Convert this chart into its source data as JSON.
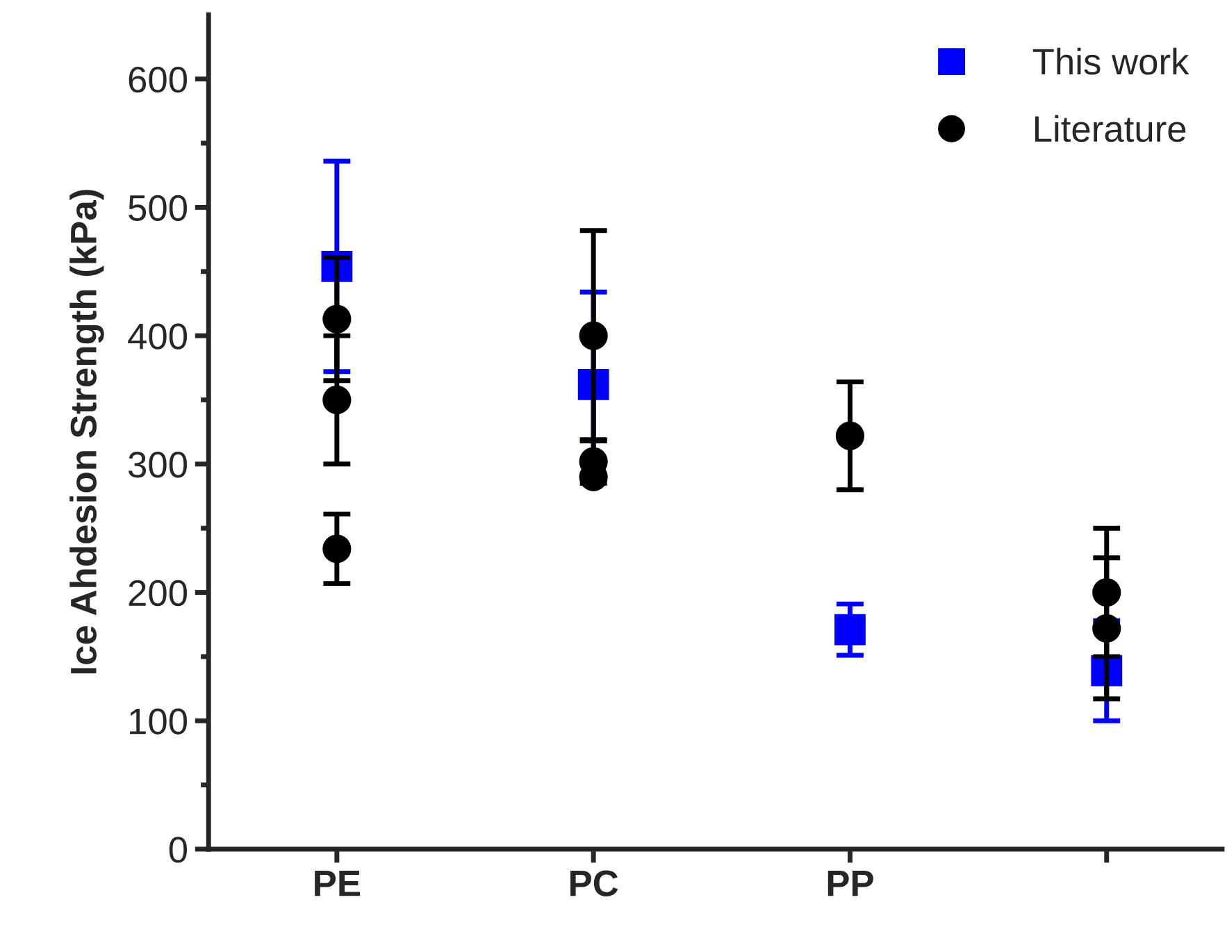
{
  "chart_data": {
    "type": "scatter",
    "ylabel": "Ice Ahdesion Strength (kPa)",
    "categories": [
      "PE",
      "PC",
      "PP",
      null
    ],
    "series": [
      {
        "name": "This work",
        "color": "#0000ff",
        "marker": "square",
        "values": [
          454,
          362,
          171,
          139
        ],
        "errors": [
          82,
          72,
          20,
          39
        ]
      },
      {
        "name": "Literature",
        "color": "#000000",
        "marker": "circle",
        "values": [
          413,
          400,
          322,
          200
        ],
        "errors": [
          48,
          82,
          42,
          50
        ]
      },
      {
        "color": "#000000",
        "marker": "circle",
        "values": [
          350,
          302,
          null,
          172
        ],
        "errors": [
          50,
          17,
          null,
          55
        ]
      },
      {
        "color": "#000000",
        "marker": "circle",
        "values": [
          234,
          290,
          null,
          null
        ],
        "errors": [
          27,
          null,
          null,
          null
        ]
      }
    ],
    "ylim": [
      0,
      650
    ],
    "yticks": [
      0,
      {
        "value": 50,
        "label": null
      },
      100,
      {
        "value": 150,
        "label": null
      },
      200,
      {
        "value": 250,
        "label": null
      },
      300,
      {
        "value": 350,
        "label": null
      },
      400,
      {
        "value": 450,
        "label": null
      },
      500,
      {
        "value": 550,
        "label": null
      },
      600
    ],
    "legend": "top right",
    "grid": false
  }
}
